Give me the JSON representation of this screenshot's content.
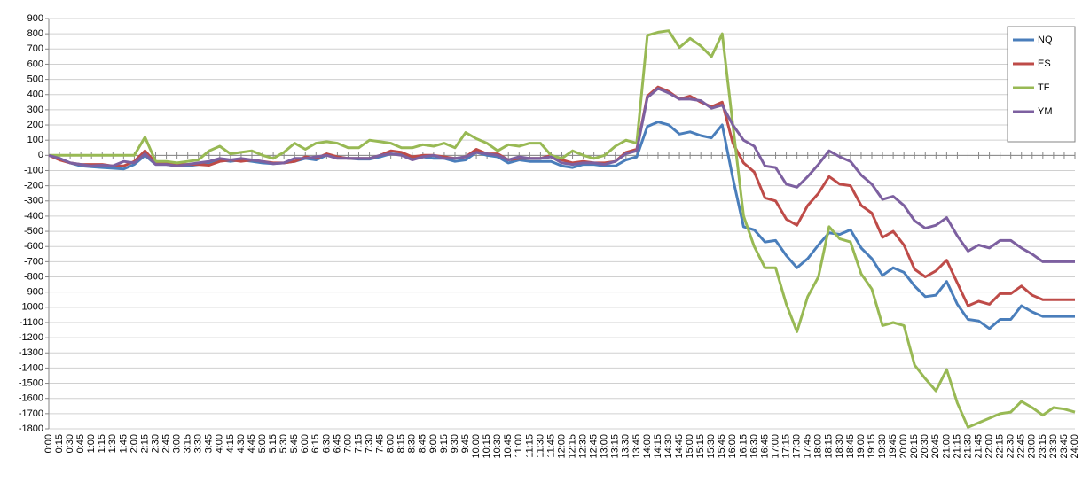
{
  "chart_data": {
    "type": "line",
    "categories": [
      "0:00",
      "0:15",
      "0:30",
      "0:45",
      "1:00",
      "1:15",
      "1:30",
      "1:45",
      "2:00",
      "2:15",
      "2:30",
      "2:45",
      "3:00",
      "3:15",
      "3:30",
      "3:45",
      "4:00",
      "4:15",
      "4:30",
      "4:45",
      "5:00",
      "5:15",
      "5:30",
      "5:45",
      "6:00",
      "6:15",
      "6:30",
      "6:45",
      "7:00",
      "7:15",
      "7:30",
      "7:45",
      "8:00",
      "8:15",
      "8:30",
      "8:45",
      "9:00",
      "9:15",
      "9:30",
      "9:45",
      "10:00",
      "10:15",
      "10:30",
      "10:45",
      "11:00",
      "11:15",
      "11:30",
      "11:45",
      "12:00",
      "12:15",
      "12:30",
      "12:45",
      "13:00",
      "13:15",
      "13:30",
      "13:45",
      "14:00",
      "14:15",
      "14:30",
      "14:45",
      "15:00",
      "15:15",
      "15:30",
      "15:45",
      "16:00",
      "16:15",
      "16:30",
      "16:45",
      "17:00",
      "17:15",
      "17:30",
      "17:45",
      "18:00",
      "18:15",
      "18:30",
      "18:45",
      "19:00",
      "19:15",
      "19:30",
      "19:45",
      "20:00",
      "20:15",
      "20:30",
      "20:45",
      "21:00",
      "21:15",
      "21:30",
      "21:45",
      "22:00",
      "22:15",
      "22:30",
      "22:45",
      "23:00",
      "23:15",
      "23:30",
      "23:45",
      "24:00"
    ],
    "series": [
      {
        "name": "NQ",
        "color": "#4a7ebb",
        "values": [
          0,
          -20,
          -50,
          -70,
          -75,
          -80,
          -85,
          -90,
          -60,
          0,
          -60,
          -60,
          -70,
          -70,
          -60,
          -50,
          -30,
          -40,
          -30,
          -40,
          -50,
          -55,
          -50,
          -40,
          -20,
          -30,
          0,
          -10,
          -20,
          -25,
          -25,
          -10,
          10,
          5,
          -20,
          -10,
          -20,
          -20,
          -40,
          -30,
          20,
          0,
          -10,
          -50,
          -30,
          -40,
          -40,
          -40,
          -70,
          -80,
          -60,
          -60,
          -70,
          -70,
          -30,
          -10,
          190,
          220,
          200,
          140,
          155,
          130,
          115,
          200,
          -150,
          -470,
          -490,
          -570,
          -560,
          -660,
          -740,
          -680,
          -590,
          -510,
          -520,
          -490,
          -610,
          -680,
          -790,
          -740,
          -770,
          -860,
          -930,
          -920,
          -830,
          -980,
          -1080,
          -1090,
          -1140,
          -1080,
          -1080,
          -990,
          -1030,
          -1060,
          -1060,
          -1060,
          -1060
        ]
      },
      {
        "name": "ES",
        "color": "#be4b48",
        "values": [
          0,
          -30,
          -50,
          -60,
          -60,
          -60,
          -70,
          -70,
          -40,
          30,
          -50,
          -50,
          -60,
          -60,
          -60,
          -65,
          -40,
          -30,
          -40,
          -30,
          -40,
          -50,
          -50,
          -40,
          -10,
          -20,
          10,
          -10,
          -20,
          -20,
          -20,
          0,
          30,
          20,
          -10,
          0,
          0,
          -10,
          -20,
          -10,
          40,
          10,
          10,
          -30,
          -20,
          -20,
          -20,
          0,
          -30,
          -50,
          -40,
          -50,
          -50,
          -40,
          20,
          40,
          390,
          450,
          420,
          370,
          390,
          350,
          320,
          350,
          80,
          -50,
          -110,
          -280,
          -300,
          -420,
          -460,
          -330,
          -250,
          -140,
          -190,
          -200,
          -330,
          -380,
          -540,
          -500,
          -590,
          -750,
          -800,
          -760,
          -690,
          -840,
          -990,
          -960,
          -980,
          -910,
          -910,
          -860,
          -920,
          -950,
          -950,
          -950,
          -950
        ]
      },
      {
        "name": "TF",
        "color": "#98b954",
        "values": [
          0,
          0,
          0,
          0,
          0,
          0,
          0,
          0,
          0,
          120,
          -40,
          -40,
          -50,
          -40,
          -30,
          30,
          60,
          10,
          20,
          30,
          0,
          -20,
          20,
          80,
          40,
          80,
          90,
          80,
          50,
          50,
          100,
          90,
          80,
          50,
          50,
          70,
          60,
          80,
          50,
          150,
          110,
          80,
          30,
          70,
          60,
          80,
          80,
          0,
          -20,
          30,
          0,
          -20,
          0,
          60,
          100,
          80,
          790,
          810,
          820,
          710,
          770,
          720,
          650,
          800,
          200,
          -400,
          -600,
          -740,
          -740,
          -980,
          -1160,
          -930,
          -800,
          -470,
          -550,
          -570,
          -780,
          -880,
          -1120,
          -1100,
          -1120,
          -1380,
          -1470,
          -1550,
          -1410,
          -1630,
          -1790,
          -1760,
          -1730,
          -1700,
          -1690,
          -1620,
          -1660,
          -1710,
          -1660,
          -1670,
          -1690
        ]
      },
      {
        "name": "YM",
        "color": "#7d60a0",
        "values": [
          0,
          -20,
          -50,
          -60,
          -70,
          -65,
          -70,
          -40,
          -50,
          10,
          -60,
          -60,
          -70,
          -60,
          -50,
          -40,
          -20,
          -30,
          -20,
          -30,
          -40,
          -55,
          -50,
          -20,
          -20,
          -10,
          0,
          -20,
          -20,
          -20,
          -20,
          0,
          10,
          0,
          -30,
          -10,
          0,
          -20,
          -20,
          -10,
          20,
          10,
          0,
          -30,
          -10,
          -20,
          -20,
          -10,
          -50,
          -60,
          -50,
          -50,
          -60,
          -40,
          10,
          30,
          380,
          440,
          410,
          370,
          370,
          360,
          310,
          330,
          200,
          100,
          60,
          -70,
          -80,
          -190,
          -210,
          -140,
          -60,
          30,
          -10,
          -40,
          -130,
          -190,
          -290,
          -270,
          -330,
          -430,
          -480,
          -460,
          -410,
          -530,
          -630,
          -590,
          -610,
          -560,
          -560,
          -610,
          -650,
          -700,
          -700,
          -700,
          -700
        ]
      }
    ],
    "ylim": [
      -1800,
      900
    ],
    "yticks": [
      900,
      800,
      700,
      600,
      500,
      400,
      300,
      200,
      100,
      0,
      -100,
      -200,
      -300,
      -400,
      -500,
      -600,
      -700,
      -800,
      -900,
      -1000,
      -1100,
      -1200,
      -1300,
      -1400,
      -1500,
      -1600,
      -1700,
      -1800
    ],
    "grid": true,
    "legend": "top-right"
  }
}
